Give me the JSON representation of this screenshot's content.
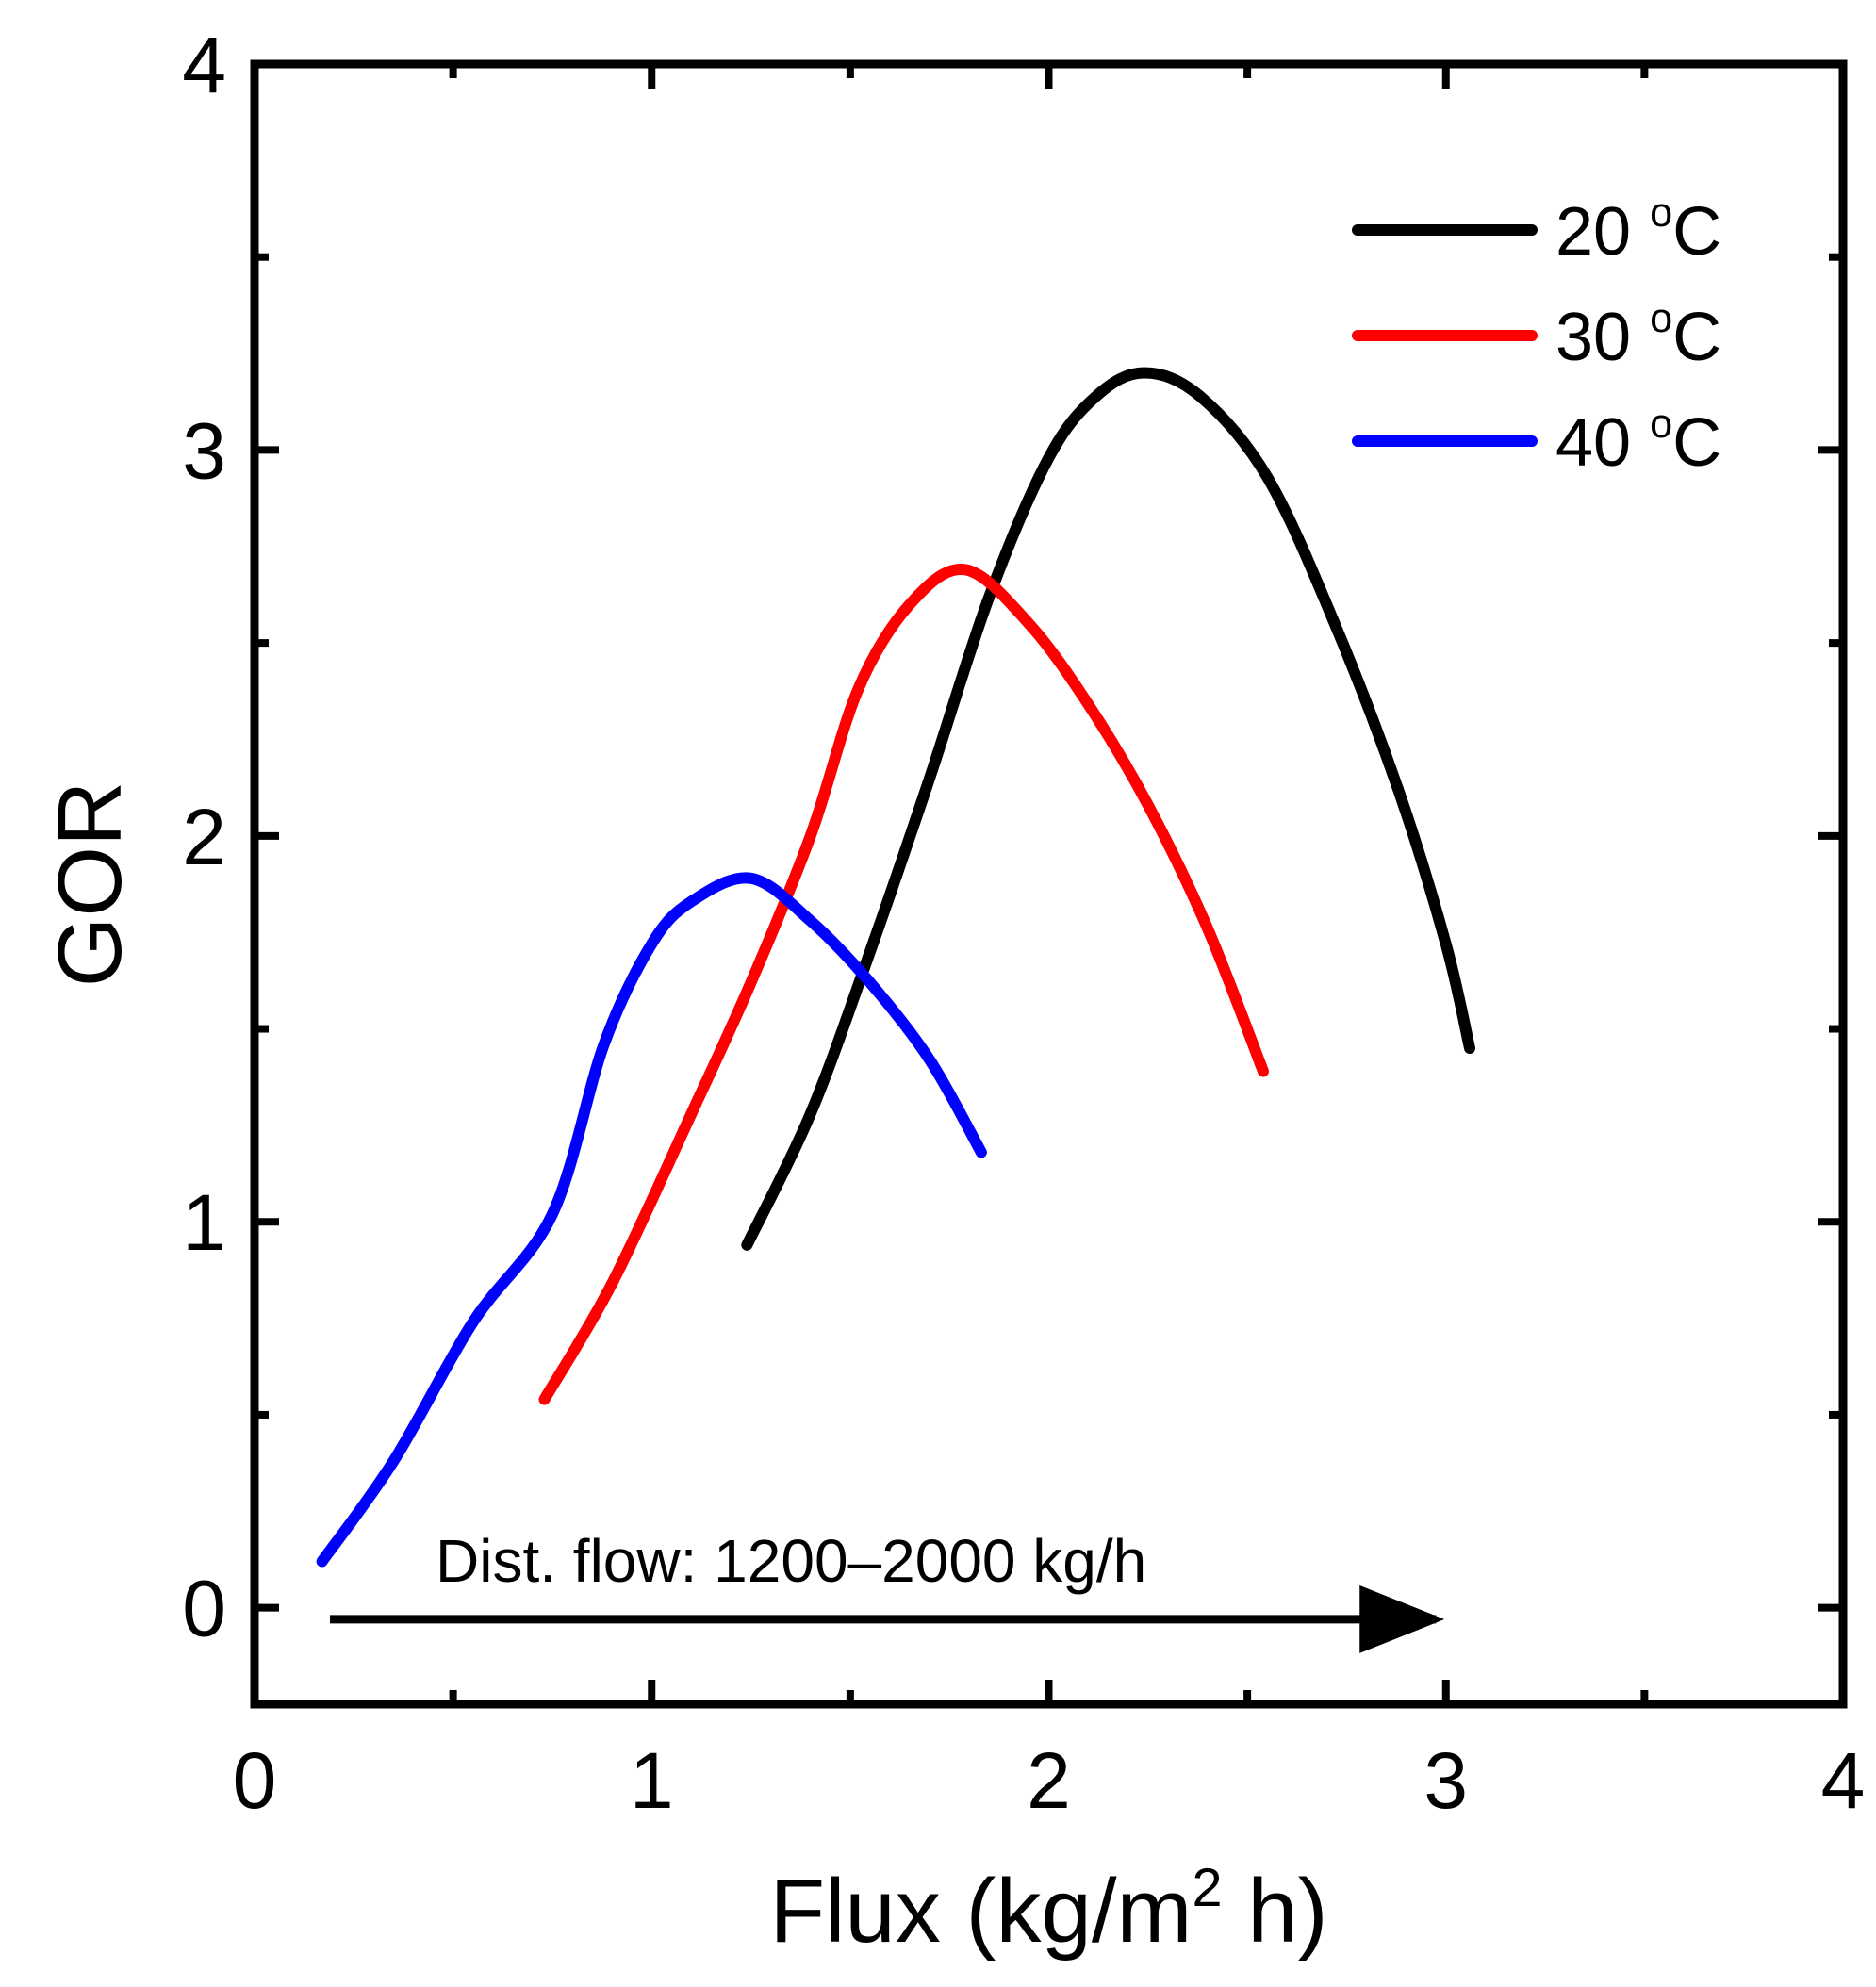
{
  "chart_data": {
    "type": "line",
    "title": "",
    "xlabel": "Flux (kg/m",
    "xlabel_sup": "2",
    "xlabel_suffix": " h)",
    "ylabel": "GOR",
    "xlim": [
      0,
      4
    ],
    "ylim": [
      -0.25,
      4
    ],
    "xticks": [
      0,
      1,
      2,
      3,
      4
    ],
    "yticks": [
      0,
      1,
      2,
      3,
      4
    ],
    "xtick_labels": [
      "0",
      "1",
      "2",
      "3",
      "4"
    ],
    "ytick_labels": [
      "0",
      "1",
      "2",
      "3",
      "4"
    ],
    "grid": false,
    "legend_position": "top-right",
    "series": [
      {
        "name": "20 °C",
        "label_main": "20 ",
        "label_sup": "o",
        "label_unit": "C",
        "color": "#000000",
        "points": [
          [
            1.24,
            0.94
          ],
          [
            1.4,
            1.28
          ],
          [
            1.55,
            1.7
          ],
          [
            1.7,
            2.15
          ],
          [
            1.85,
            2.62
          ],
          [
            2.0,
            2.98
          ],
          [
            2.12,
            3.14
          ],
          [
            2.24,
            3.2
          ],
          [
            2.38,
            3.14
          ],
          [
            2.55,
            2.93
          ],
          [
            2.72,
            2.55
          ],
          [
            2.88,
            2.12
          ],
          [
            3.0,
            1.72
          ],
          [
            3.06,
            1.45
          ]
        ]
      },
      {
        "name": "30 °C",
        "label_main": "30 ",
        "label_sup": "o",
        "label_unit": "C",
        "color": "#ff0000",
        "points": [
          [
            0.73,
            0.54
          ],
          [
            0.9,
            0.84
          ],
          [
            1.1,
            1.28
          ],
          [
            1.25,
            1.62
          ],
          [
            1.4,
            2.0
          ],
          [
            1.52,
            2.38
          ],
          [
            1.65,
            2.6
          ],
          [
            1.79,
            2.69
          ],
          [
            1.95,
            2.55
          ],
          [
            2.1,
            2.34
          ],
          [
            2.25,
            2.08
          ],
          [
            2.4,
            1.76
          ],
          [
            2.54,
            1.39
          ]
        ]
      },
      {
        "name": "40 °C",
        "label_main": "40 ",
        "label_sup": "o",
        "label_unit": "C",
        "color": "#0000ff",
        "points": [
          [
            0.17,
            0.12
          ],
          [
            0.35,
            0.38
          ],
          [
            0.55,
            0.74
          ],
          [
            0.75,
            1.02
          ],
          [
            0.88,
            1.46
          ],
          [
            1.0,
            1.72
          ],
          [
            1.1,
            1.83
          ],
          [
            1.25,
            1.89
          ],
          [
            1.4,
            1.78
          ],
          [
            1.55,
            1.62
          ],
          [
            1.7,
            1.42
          ],
          [
            1.83,
            1.18
          ]
        ]
      }
    ],
    "annotation": {
      "text": "Dist. flow: 1200–2000 kg/h",
      "arrow_from": [
        0.19,
        -0.03
      ],
      "arrow_to": [
        3.07,
        -0.03
      ]
    }
  }
}
